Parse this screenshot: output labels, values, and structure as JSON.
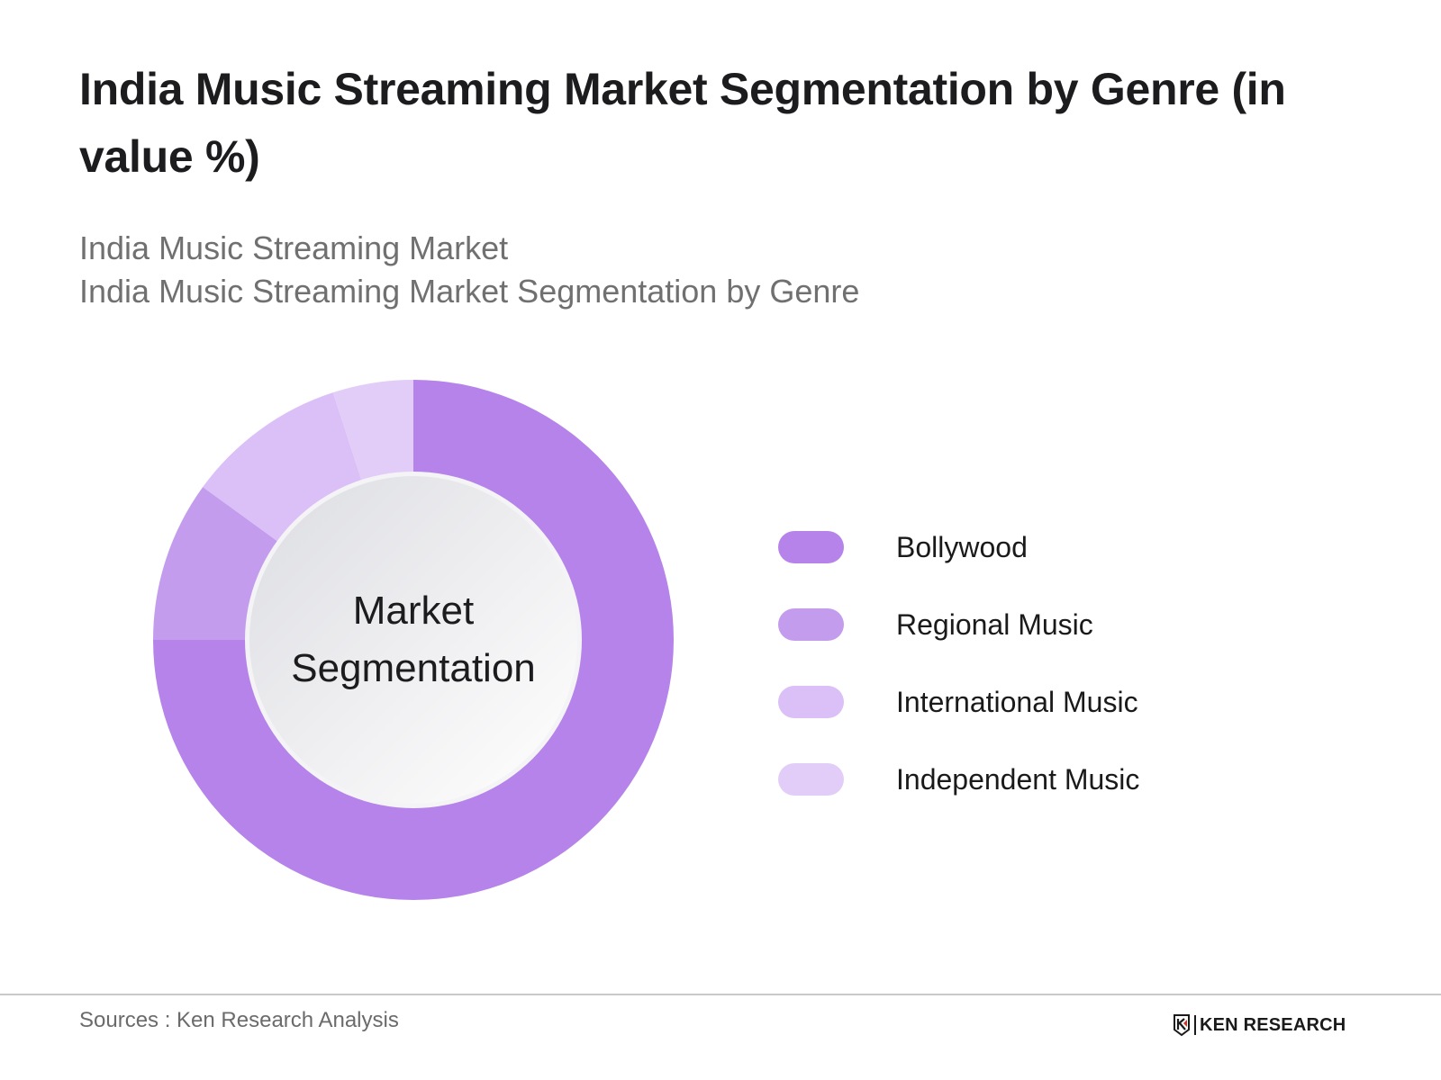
{
  "header": {
    "title": "India Music Streaming Market Segmentation by Genre (in value %)",
    "subtitle_1": "India Music Streaming Market",
    "subtitle_2": "India Music Streaming Market Segmentation by Genre"
  },
  "chart": {
    "center_label_line1": "Market",
    "center_label_line2": "Segmentation"
  },
  "legend": {
    "items": [
      {
        "label": "Bollywood",
        "color": "#b583ea"
      },
      {
        "label": "Regional Music",
        "color": "#c49cee"
      },
      {
        "label": "International Music",
        "color": "#dbbff7"
      },
      {
        "label": "Independent Music",
        "color": "#e2cdf8"
      }
    ]
  },
  "footer": {
    "source": "Sources : Ken Research Analysis",
    "logo_text": "KEN RESEARCH",
    "logo_mark": "K"
  },
  "chart_data": {
    "type": "pie",
    "subtype": "donut",
    "title": "India Music Streaming Market Segmentation by Genre (in value %)",
    "subtitle": "India Music Streaming Market Segmentation by Genre",
    "center_label": "Market Segmentation",
    "categories": [
      "Bollywood",
      "Regional Music",
      "International Music",
      "Independent Music"
    ],
    "values": [
      75,
      10,
      10,
      5
    ],
    "unit": "%",
    "colors": [
      "#b583ea",
      "#c49cee",
      "#dbbff7",
      "#e2cdf8"
    ],
    "start_angle": "12 o'clock, clockwise",
    "data_labels_shown": false,
    "legend_position": "right"
  }
}
